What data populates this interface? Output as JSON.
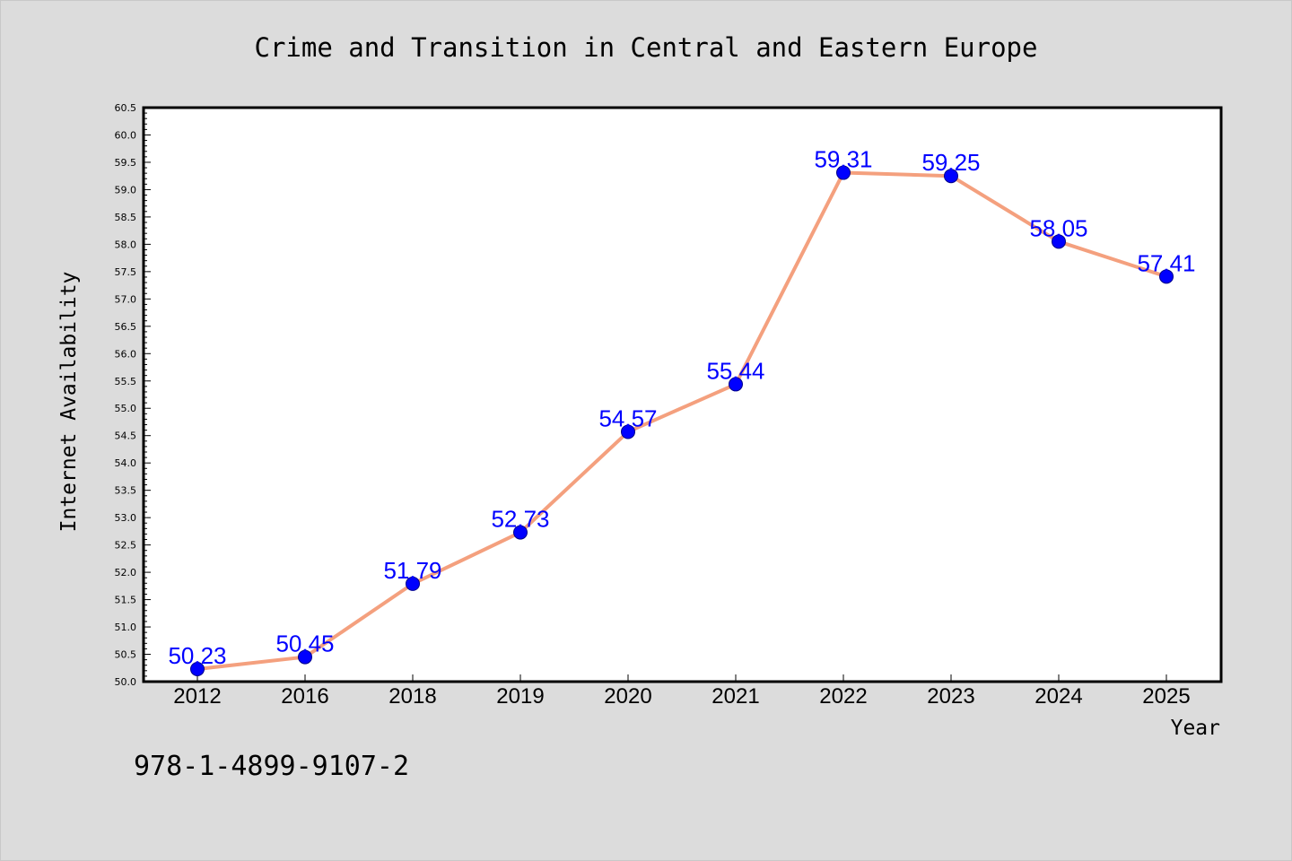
{
  "colors": {
    "background": "#dcdcdc",
    "plot_area": "#ffffff",
    "line": "#f4a07e",
    "marker": "#0000ff",
    "data_label": "#0000ff"
  },
  "footer": {
    "isbn": "978-1-4899-9107-2"
  },
  "chart_data": {
    "type": "line",
    "title": "Crime and Transition in Central and Eastern Europe",
    "xlabel": "Year",
    "ylabel": "Internet Availability",
    "categories": [
      "2012",
      "2016",
      "2018",
      "2019",
      "2020",
      "2021",
      "2022",
      "2023",
      "2024",
      "2025"
    ],
    "series": [
      {
        "values": [
          50.23,
          50.45,
          51.79,
          52.73,
          54.57,
          55.44,
          59.31,
          59.25,
          58.05,
          57.41
        ],
        "labels": [
          "50.23",
          "50.45",
          "51.79",
          "52.73",
          "54.57",
          "55.44",
          "59.31",
          "59.25",
          "58.05",
          "57.41"
        ]
      }
    ],
    "ylim": [
      50.0,
      60.5
    ],
    "yticks": [
      "50.0",
      "50.5",
      "51.0",
      "51.5",
      "52.0",
      "52.5",
      "53.0",
      "53.5",
      "54.0",
      "54.5",
      "55.0",
      "55.5",
      "56.0",
      "56.5",
      "57.0",
      "57.5",
      "58.0",
      "58.5",
      "59.0",
      "59.5",
      "60.0",
      "60.5"
    ],
    "grid": false,
    "legend": "none",
    "markers": "circle"
  }
}
